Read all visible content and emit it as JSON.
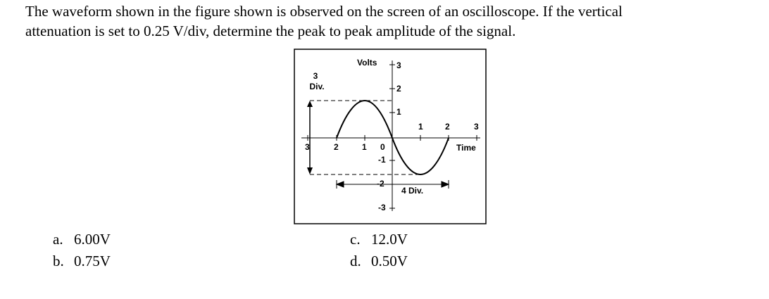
{
  "question": {
    "lines": [
      "The waveform shown in the figure shown is observed on the screen of an oscilloscope. If the vertical",
      "attenuation is set to 0.25 V/div, determine the peak to peak amplitude of the signal."
    ]
  },
  "figure": {
    "y_axis_title": "Volts",
    "y_labels": [
      "3",
      "2",
      "1",
      "-1",
      "-2",
      "-3"
    ],
    "x_labels_right": [
      "1",
      "2",
      "3"
    ],
    "x_axis_title": "Time",
    "x_labels_left": [
      "3",
      "2",
      "1",
      "0"
    ],
    "vertical_span": [
      "3",
      "Div."
    ],
    "horizontal_span": "4 Div."
  },
  "options": [
    {
      "letter": "a.",
      "text": "6.00V"
    },
    {
      "letter": "b.",
      "text": "0.75V"
    },
    {
      "letter": "c.",
      "text": "12.0V"
    },
    {
      "letter": "d.",
      "text": "0.50V"
    }
  ]
}
